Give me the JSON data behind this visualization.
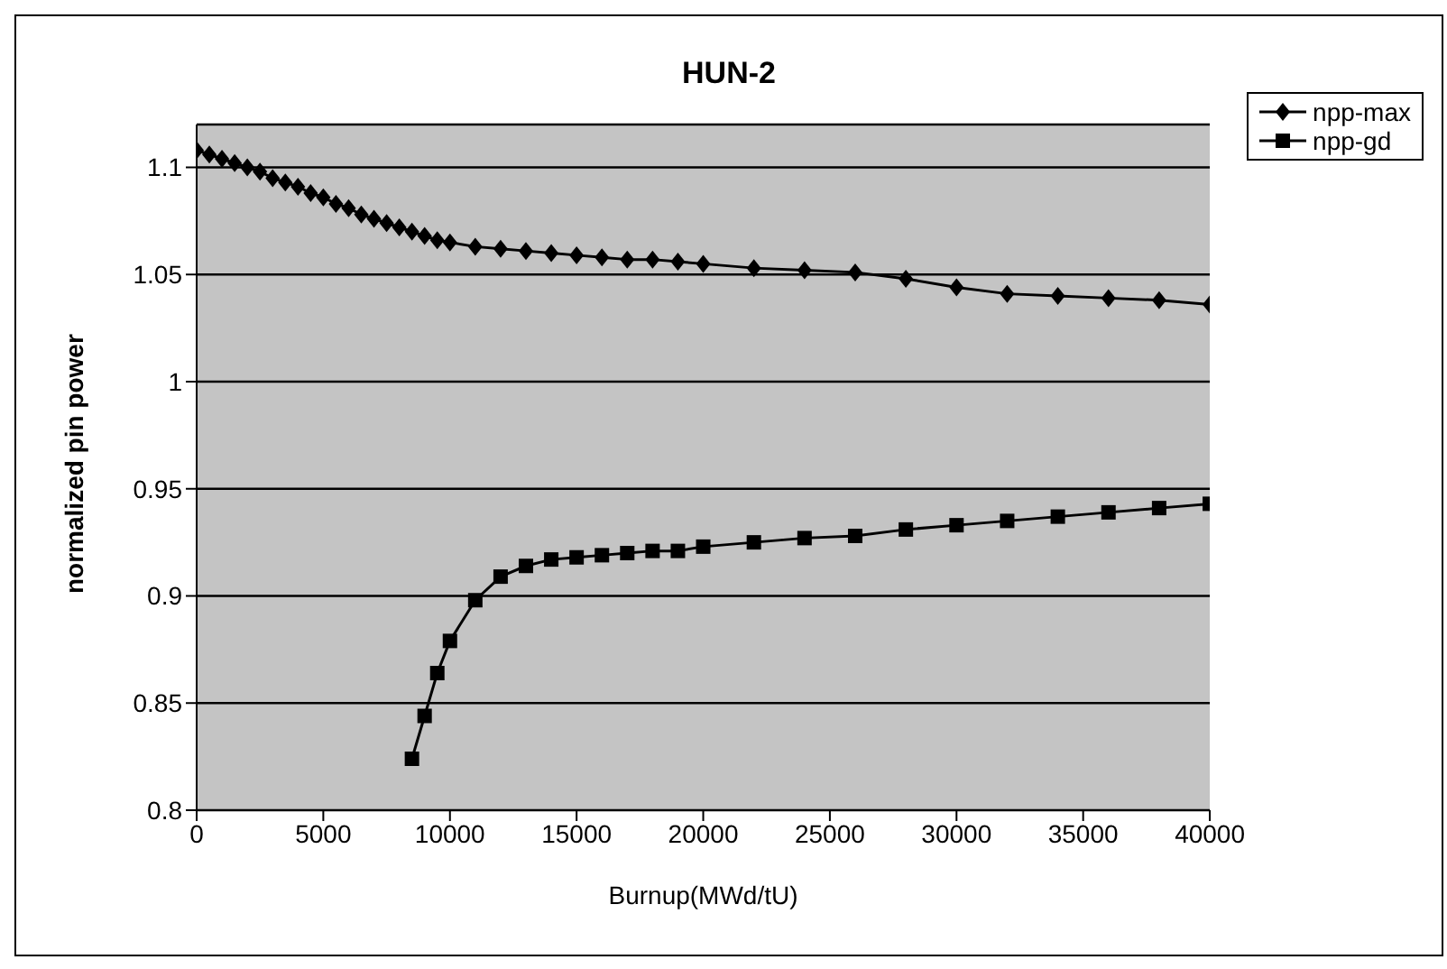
{
  "chart_data": {
    "type": "line",
    "title": "HUN-2",
    "xlabel": "Burnup(MWd/tU)",
    "ylabel": "normalized pin power",
    "xlim": [
      0,
      40000
    ],
    "xticks": [
      0,
      5000,
      10000,
      15000,
      20000,
      25000,
      30000,
      35000,
      40000
    ],
    "ylim": [
      0.8,
      1.12
    ],
    "yticks": [
      0.8,
      0.85,
      0.9,
      0.95,
      1,
      1.05,
      1.1
    ],
    "grid": "y",
    "legend": "top right",
    "line_style": "solid",
    "series": [
      {
        "name": "npp-max",
        "color": "#000000",
        "marker": "diamond",
        "x": [
          0,
          500,
          1000,
          1500,
          2000,
          2500,
          3000,
          3500,
          4000,
          4500,
          5000,
          5500,
          6000,
          6500,
          7000,
          7500,
          8000,
          8500,
          9000,
          9500,
          10000,
          11000,
          12000,
          13000,
          14000,
          15000,
          16000,
          17000,
          18000,
          19000,
          20000,
          22000,
          24000,
          26000,
          28000,
          30000,
          32000,
          34000,
          36000,
          38000,
          40000
        ],
        "values": [
          1.108,
          1.106,
          1.104,
          1.102,
          1.1,
          1.098,
          1.095,
          1.093,
          1.091,
          1.088,
          1.086,
          1.083,
          1.081,
          1.078,
          1.076,
          1.074,
          1.072,
          1.07,
          1.068,
          1.066,
          1.065,
          1.063,
          1.062,
          1.061,
          1.06,
          1.059,
          1.058,
          1.057,
          1.057,
          1.056,
          1.055,
          1.053,
          1.052,
          1.051,
          1.048,
          1.044,
          1.041,
          1.04,
          1.039,
          1.038,
          1.036
        ]
      },
      {
        "name": "npp-gd",
        "color": "#000000",
        "marker": "square",
        "x": [
          8500,
          9000,
          9500,
          10000,
          11000,
          12000,
          13000,
          14000,
          15000,
          16000,
          17000,
          18000,
          19000,
          20000,
          22000,
          24000,
          26000,
          28000,
          30000,
          32000,
          34000,
          36000,
          38000,
          40000
        ],
        "values": [
          0.824,
          0.844,
          0.864,
          0.879,
          0.898,
          0.909,
          0.914,
          0.917,
          0.918,
          0.919,
          0.92,
          0.921,
          0.921,
          0.923,
          0.925,
          0.927,
          0.928,
          0.931,
          0.933,
          0.935,
          0.937,
          0.939,
          0.941,
          0.943
        ]
      }
    ]
  }
}
